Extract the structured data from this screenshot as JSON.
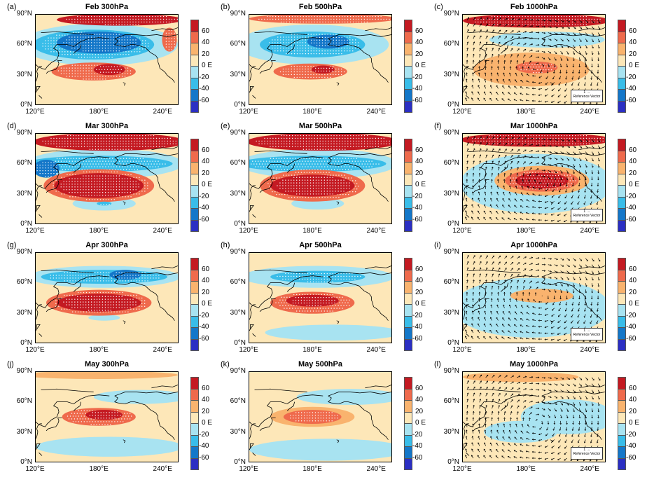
{
  "figure": {
    "longitude_ticks": [
      "120°E",
      "180°E",
      "240°E"
    ],
    "latitude_ticks": [
      "90°N",
      "60°N",
      "30°N",
      "0°N"
    ],
    "colorbar_ticks": [
      "60",
      "40",
      "20",
      "0",
      "-20",
      "-40",
      "-60"
    ],
    "colorbar_unit": "E",
    "colorbar_colors": [
      "#c41a22",
      "#ef6a4c",
      "#f9b36e",
      "#fde7b8",
      "#a8e3f1",
      "#39bde9",
      "#1477c9",
      "#2b2fc3"
    ],
    "reference_vector_label": "Reference Vector",
    "reference_vector_value": "1"
  },
  "chart_data": [
    {
      "type": "heatmap",
      "panel": "(a)",
      "title": "Feb 300hPa",
      "level": "300hPa",
      "month": "Feb",
      "vectors": false,
      "features": [
        {
          "kind": "positive",
          "value": 60,
          "lon": 200,
          "lat": 85,
          "w": 120,
          "h": 12
        },
        {
          "kind": "negative",
          "value": -60,
          "lon": 180,
          "lat": 62,
          "w": 80,
          "h": 22
        },
        {
          "kind": "negative",
          "value": -40,
          "lon": 175,
          "lat": 60,
          "w": 115,
          "h": 30
        },
        {
          "kind": "negative",
          "value": -20,
          "lon": 180,
          "lat": 60,
          "w": 150,
          "h": 42
        },
        {
          "kind": "positive",
          "value": 60,
          "lon": 190,
          "lat": 35,
          "w": 30,
          "h": 11
        },
        {
          "kind": "positive",
          "value": 40,
          "lon": 175,
          "lat": 33,
          "w": 80,
          "h": 18
        },
        {
          "kind": "positive",
          "value": 40,
          "lon": 247,
          "lat": 65,
          "w": 14,
          "h": 24
        }
      ]
    },
    {
      "type": "heatmap",
      "panel": "(b)",
      "title": "Feb 500hPa",
      "level": "500hPa",
      "month": "Feb",
      "vectors": false,
      "features": [
        {
          "kind": "positive",
          "value": 40,
          "lon": 190,
          "lat": 86,
          "w": 140,
          "h": 10
        },
        {
          "kind": "negative",
          "value": -60,
          "lon": 195,
          "lat": 63,
          "w": 40,
          "h": 14
        },
        {
          "kind": "negative",
          "value": -40,
          "lon": 180,
          "lat": 60,
          "w": 100,
          "h": 26
        },
        {
          "kind": "negative",
          "value": -20,
          "lon": 180,
          "lat": 60,
          "w": 145,
          "h": 40
        },
        {
          "kind": "positive",
          "value": 60,
          "lon": 190,
          "lat": 35,
          "w": 22,
          "h": 8
        },
        {
          "kind": "positive",
          "value": 40,
          "lon": 178,
          "lat": 33,
          "w": 70,
          "h": 16
        }
      ]
    },
    {
      "type": "heatmap",
      "panel": "(c)",
      "title": "Feb 1000hPa",
      "level": "1000hPa",
      "month": "Feb",
      "vectors": true,
      "features": [
        {
          "kind": "positive",
          "value": 60,
          "lon": 190,
          "lat": 84,
          "w": 140,
          "h": 14
        },
        {
          "kind": "negative",
          "value": -20,
          "lon": 200,
          "lat": 65,
          "w": 110,
          "h": 16
        },
        {
          "kind": "positive",
          "value": 40,
          "lon": 190,
          "lat": 37,
          "w": 40,
          "h": 12
        },
        {
          "kind": "positive",
          "value": 20,
          "lon": 185,
          "lat": 35,
          "w": 110,
          "h": 34
        }
      ]
    },
    {
      "type": "heatmap",
      "panel": "(d)",
      "title": "Mar 300hPa",
      "level": "300hPa",
      "month": "Mar",
      "vectors": false,
      "features": [
        {
          "kind": "positive",
          "value": 60,
          "lon": 190,
          "lat": 82,
          "w": 145,
          "h": 18
        },
        {
          "kind": "negative",
          "value": -60,
          "lon": 130,
          "lat": 55,
          "w": 25,
          "h": 18
        },
        {
          "kind": "negative",
          "value": -40,
          "lon": 180,
          "lat": 60,
          "w": 140,
          "h": 16
        },
        {
          "kind": "negative",
          "value": -20,
          "lon": 185,
          "lat": 60,
          "w": 150,
          "h": 30
        },
        {
          "kind": "positive",
          "value": 60,
          "lon": 180,
          "lat": 38,
          "w": 85,
          "h": 25
        },
        {
          "kind": "positive",
          "value": 40,
          "lon": 180,
          "lat": 38,
          "w": 105,
          "h": 33
        },
        {
          "kind": "negative",
          "value": -20,
          "lon": 185,
          "lat": 20,
          "w": 60,
          "h": 14
        },
        {
          "kind": "negative",
          "value": -40,
          "lon": 185,
          "lat": 20,
          "w": 14,
          "h": 4
        }
      ]
    },
    {
      "type": "heatmap",
      "panel": "(e)",
      "title": "Mar 500hPa",
      "level": "500hPa",
      "month": "Mar",
      "vectors": false,
      "features": [
        {
          "kind": "positive",
          "value": 60,
          "lon": 190,
          "lat": 82,
          "w": 145,
          "h": 18
        },
        {
          "kind": "negative",
          "value": -40,
          "lon": 180,
          "lat": 60,
          "w": 140,
          "h": 16
        },
        {
          "kind": "negative",
          "value": -20,
          "lon": 185,
          "lat": 60,
          "w": 150,
          "h": 30
        },
        {
          "kind": "positive",
          "value": 60,
          "lon": 180,
          "lat": 38,
          "w": 80,
          "h": 22
        },
        {
          "kind": "positive",
          "value": 40,
          "lon": 180,
          "lat": 38,
          "w": 100,
          "h": 32
        },
        {
          "kind": "negative",
          "value": -20,
          "lon": 185,
          "lat": 20,
          "w": 50,
          "h": 12
        }
      ]
    },
    {
      "type": "heatmap",
      "panel": "(f)",
      "title": "Mar 1000hPa",
      "level": "1000hPa",
      "month": "Mar",
      "vectors": true,
      "features": [
        {
          "kind": "positive",
          "value": 60,
          "lon": 190,
          "lat": 84,
          "w": 145,
          "h": 14
        },
        {
          "kind": "negative",
          "value": -20,
          "lon": 190,
          "lat": 40,
          "w": 145,
          "h": 60
        },
        {
          "kind": "positive",
          "value": 60,
          "lon": 195,
          "lat": 43,
          "w": 50,
          "h": 16
        },
        {
          "kind": "positive",
          "value": 40,
          "lon": 195,
          "lat": 43,
          "w": 70,
          "h": 22
        },
        {
          "kind": "positive",
          "value": 20,
          "lon": 195,
          "lat": 43,
          "w": 90,
          "h": 30
        }
      ]
    },
    {
      "type": "heatmap",
      "panel": "(g)",
      "title": "Apr 300hPa",
      "level": "300hPa",
      "month": "Apr",
      "vectors": false,
      "features": [
        {
          "kind": "negative",
          "value": -60,
          "lon": 205,
          "lat": 68,
          "w": 30,
          "h": 10
        },
        {
          "kind": "negative",
          "value": -40,
          "lon": 185,
          "lat": 66,
          "w": 120,
          "h": 14
        },
        {
          "kind": "negative",
          "value": -20,
          "lon": 185,
          "lat": 66,
          "w": 145,
          "h": 22
        },
        {
          "kind": "positive",
          "value": 60,
          "lon": 180,
          "lat": 40,
          "w": 80,
          "h": 18
        },
        {
          "kind": "positive",
          "value": 40,
          "lon": 180,
          "lat": 40,
          "w": 100,
          "h": 26
        },
        {
          "kind": "negative",
          "value": -20,
          "lon": 185,
          "lat": 25,
          "w": 30,
          "h": 6
        }
      ]
    },
    {
      "type": "heatmap",
      "panel": "(h)",
      "title": "Apr 500hPa",
      "level": "500hPa",
      "month": "Apr",
      "vectors": false,
      "features": [
        {
          "kind": "negative",
          "value": -40,
          "lon": 185,
          "lat": 66,
          "w": 90,
          "h": 12
        },
        {
          "kind": "negative",
          "value": -20,
          "lon": 185,
          "lat": 66,
          "w": 145,
          "h": 22
        },
        {
          "kind": "positive",
          "value": 60,
          "lon": 180,
          "lat": 42,
          "w": 50,
          "h": 12
        },
        {
          "kind": "positive",
          "value": 40,
          "lon": 180,
          "lat": 40,
          "w": 80,
          "h": 22
        },
        {
          "kind": "negative",
          "value": -20,
          "lon": 200,
          "lat": 10,
          "w": 130,
          "h": 16
        }
      ]
    },
    {
      "type": "heatmap",
      "panel": "(i)",
      "title": "Apr 1000hPa",
      "level": "1000hPa",
      "month": "Apr",
      "vectors": true,
      "features": [
        {
          "kind": "negative",
          "value": -20,
          "lon": 185,
          "lat": 35,
          "w": 150,
          "h": 60
        },
        {
          "kind": "positive",
          "value": 20,
          "lon": 195,
          "lat": 47,
          "w": 60,
          "h": 14
        }
      ]
    },
    {
      "type": "heatmap",
      "panel": "(j)",
      "title": "May 300hPa",
      "level": "300hPa",
      "month": "May",
      "vectors": false,
      "features": [
        {
          "kind": "positive",
          "value": 20,
          "lon": 180,
          "lat": 87,
          "w": 150,
          "h": 8
        },
        {
          "kind": "negative",
          "value": -20,
          "lon": 220,
          "lat": 65,
          "w": 90,
          "h": 14
        },
        {
          "kind": "positive",
          "value": 60,
          "lon": 185,
          "lat": 47,
          "w": 35,
          "h": 10
        },
        {
          "kind": "positive",
          "value": 40,
          "lon": 180,
          "lat": 45,
          "w": 70,
          "h": 18
        },
        {
          "kind": "negative",
          "value": -20,
          "lon": 190,
          "lat": 15,
          "w": 140,
          "h": 20
        }
      ]
    },
    {
      "type": "heatmap",
      "panel": "(k)",
      "title": "May 500hPa",
      "level": "500hPa",
      "month": "May",
      "vectors": false,
      "features": [
        {
          "kind": "negative",
          "value": -20,
          "lon": 215,
          "lat": 65,
          "w": 100,
          "h": 16
        },
        {
          "kind": "positive",
          "value": 40,
          "lon": 180,
          "lat": 45,
          "w": 55,
          "h": 14
        },
        {
          "kind": "positive",
          "value": 20,
          "lon": 180,
          "lat": 45,
          "w": 80,
          "h": 20
        },
        {
          "kind": "negative",
          "value": -20,
          "lon": 195,
          "lat": 12,
          "w": 150,
          "h": 22
        }
      ]
    },
    {
      "type": "heatmap",
      "panel": "(l)",
      "title": "May 1000hPa",
      "level": "1000hPa",
      "month": "May",
      "vectors": true,
      "features": [
        {
          "kind": "positive",
          "value": 20,
          "lon": 175,
          "lat": 85,
          "w": 110,
          "h": 10
        },
        {
          "kind": "negative",
          "value": -20,
          "lon": 220,
          "lat": 45,
          "w": 90,
          "h": 35
        },
        {
          "kind": "negative",
          "value": -20,
          "lon": 175,
          "lat": 30,
          "w": 70,
          "h": 22
        }
      ]
    }
  ]
}
